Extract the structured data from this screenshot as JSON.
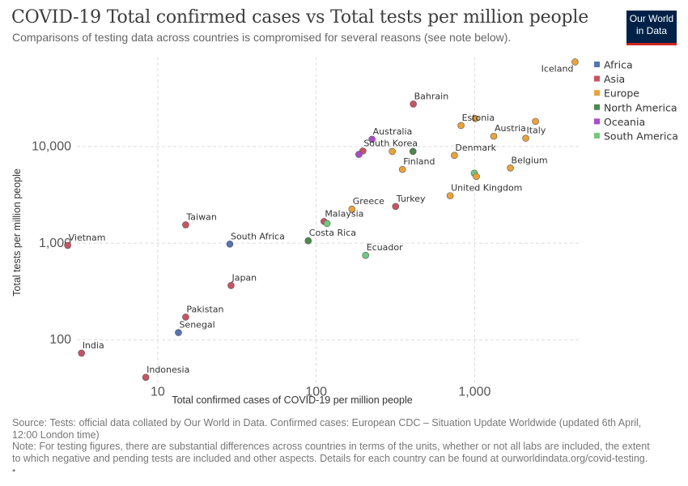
{
  "header": {
    "title": "COVID-19 Total confirmed cases vs Total tests per million people",
    "subtitle": "Comparisons of testing data across countries is compromised for several reasons (see note below)."
  },
  "logo": {
    "line1": "Our World",
    "line2": "in Data"
  },
  "footer": {
    "source": "Source: Tests: official data collated by Our World in Data. Confirmed cases: European CDC – Situation Update Worldwide (updated 6th April, 12:00 London time)",
    "note": "Note: For testing figures, there are substantial differences across countries in terms of the units, whether or not all labs are included, the extent to which negative and pending tests are included and other aspects. Details for each country can be found at ourworldindata.org/covid-testing.",
    "bullet": "•"
  },
  "colors": {
    "Africa": "#5574b5",
    "Asia": "#c95365",
    "Europe": "#eba23a",
    "North America": "#4a8a4d",
    "Oceania": "#a94cc9",
    "South America": "#6fca7f"
  },
  "chart_data": {
    "type": "scatter",
    "title": "COVID-19 Total confirmed cases vs Total tests per million people",
    "xlabel": "Total confirmed cases of COVID-19 per million people",
    "ylabel": "Total tests per million people",
    "xscale": "log",
    "yscale": "log",
    "xlim": [
      2.3,
      4700
    ],
    "ylim": [
      35,
      85000
    ],
    "xticks": [
      {
        "value": 10,
        "label": "10"
      },
      {
        "value": 100,
        "label": "100"
      },
      {
        "value": 1000,
        "label": "1,000"
      }
    ],
    "yticks": [
      {
        "value": 100,
        "label": "100"
      },
      {
        "value": 1000,
        "label": "1,000"
      },
      {
        "value": 10000,
        "label": "10,000"
      }
    ],
    "grid": true,
    "legend": "top-right",
    "legend_entries": [
      "Africa",
      "Asia",
      "Europe",
      "North America",
      "Oceania",
      "South America"
    ],
    "points": [
      {
        "label": "Iceland",
        "continent": "Europe",
        "x": 4300,
        "y": 75000,
        "labelPos": "below-left"
      },
      {
        "label": "Bahrain",
        "continent": "Asia",
        "x": 410,
        "y": 27500,
        "labelPos": "above-right"
      },
      {
        "label": "Estonia",
        "continent": "Europe",
        "x": 820,
        "y": 16500,
        "labelPos": "above-right"
      },
      {
        "label": "",
        "continent": "Europe",
        "x": 1010,
        "y": 19500,
        "labelPos": "none"
      },
      {
        "label": "",
        "continent": "Europe",
        "x": 2420,
        "y": 18200,
        "labelPos": "none"
      },
      {
        "label": "Austria",
        "continent": "Europe",
        "x": 1320,
        "y": 12800,
        "labelPos": "above-right"
      },
      {
        "label": "Italy",
        "continent": "Europe",
        "x": 2100,
        "y": 12200,
        "labelPos": "above-right"
      },
      {
        "label": "Australia",
        "continent": "Oceania",
        "x": 225,
        "y": 11900,
        "labelPos": "above-right"
      },
      {
        "label": "South Korea",
        "continent": "Asia",
        "x": 197,
        "y": 9000,
        "labelPos": "above-right"
      },
      {
        "label": "",
        "continent": "Oceania",
        "x": 186,
        "y": 8300,
        "labelPos": "none"
      },
      {
        "label": "",
        "continent": "Europe",
        "x": 302,
        "y": 8900,
        "labelPos": "none"
      },
      {
        "label": "",
        "continent": "North America",
        "x": 408,
        "y": 8900,
        "labelPos": "none"
      },
      {
        "label": "Denmark",
        "continent": "Europe",
        "x": 745,
        "y": 8100,
        "labelPos": "above-right"
      },
      {
        "label": "Finland",
        "continent": "Europe",
        "x": 350,
        "y": 5800,
        "labelPos": "above-right"
      },
      {
        "label": "Belgium",
        "continent": "Europe",
        "x": 1680,
        "y": 6000,
        "labelPos": "above-right"
      },
      {
        "label": "",
        "continent": "South America",
        "x": 995,
        "y": 5300,
        "labelPos": "none"
      },
      {
        "label": "",
        "continent": "Europe",
        "x": 1025,
        "y": 4900,
        "labelPos": "none"
      },
      {
        "label": "United Kingdom",
        "continent": "Europe",
        "x": 700,
        "y": 3100,
        "labelPos": "above-right"
      },
      {
        "label": "Greece",
        "continent": "Europe",
        "x": 168,
        "y": 2250,
        "labelPos": "above-right"
      },
      {
        "label": "Turkey",
        "continent": "Asia",
        "x": 317,
        "y": 2400,
        "labelPos": "above-right"
      },
      {
        "label": "Malaysia",
        "continent": "Asia",
        "x": 112,
        "y": 1680,
        "labelPos": "above-right"
      },
      {
        "label": "",
        "continent": "South America",
        "x": 117,
        "y": 1600,
        "labelPos": "none"
      },
      {
        "label": "Taiwan",
        "continent": "Asia",
        "x": 15,
        "y": 1550,
        "labelPos": "above-right"
      },
      {
        "label": "Vietnam",
        "continent": "Asia",
        "x": 2.7,
        "y": 950,
        "labelPos": "above-right"
      },
      {
        "label": "South Africa",
        "continent": "Africa",
        "x": 28.5,
        "y": 980,
        "labelPos": "above-right"
      },
      {
        "label": "Costa Rica",
        "continent": "North America",
        "x": 89,
        "y": 1060,
        "labelPos": "above-right"
      },
      {
        "label": "Ecuador",
        "continent": "South America",
        "x": 205,
        "y": 750,
        "labelPos": "above-right"
      },
      {
        "label": "Japan",
        "continent": "Asia",
        "x": 29,
        "y": 365,
        "labelPos": "above-right"
      },
      {
        "label": "Pakistan",
        "continent": "Asia",
        "x": 15,
        "y": 172,
        "labelPos": "above-right"
      },
      {
        "label": "Senegal",
        "continent": "Africa",
        "x": 13.5,
        "y": 119,
        "labelPos": "above-right"
      },
      {
        "label": "India",
        "continent": "Asia",
        "x": 3.3,
        "y": 73,
        "labelPos": "above-right"
      },
      {
        "label": "Indonesia",
        "continent": "Asia",
        "x": 8.4,
        "y": 41,
        "labelPos": "above-right"
      }
    ]
  }
}
